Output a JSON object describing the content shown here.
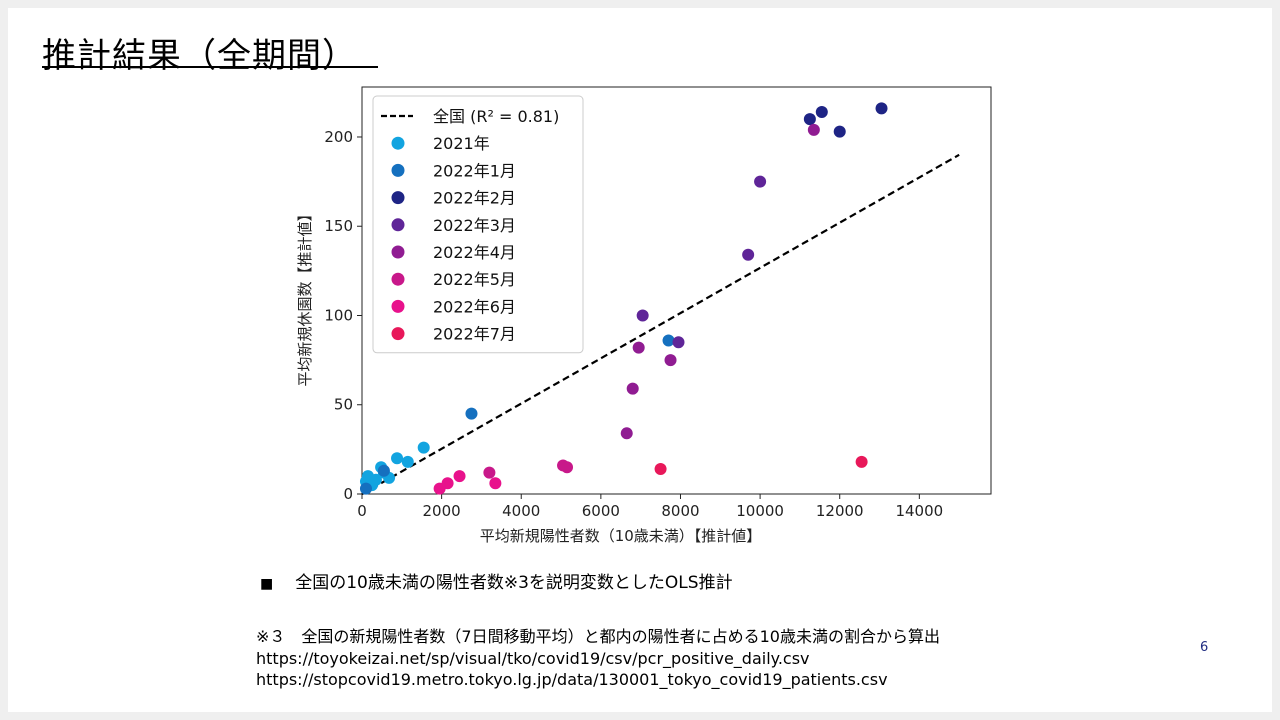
{
  "slide": {
    "title": "推計結果（全期間）",
    "bullet": "全国の10歳未満の陽性者数※3を説明変数としたOLS推計",
    "notes": [
      "※３　全国の新規陽性者数（7日間移動平均）と都内の陽性者に占める10歳未満の割合から算出",
      "https://toyokeizai.net/sp/visual/tko/covid19/csv/pcr_positive_daily.csv",
      "https://stopcovid19.metro.tokyo.lg.jp/data/130001_tokyo_covid19_patients.csv"
    ],
    "page_number": "6",
    "bullet_mark": "■"
  },
  "chart_data": {
    "type": "scatter",
    "xlabel": "平均新規陽性者数（10歳未満）【推計値】",
    "ylabel": "平均新規休園数【推計値】",
    "xlim": [
      0,
      15800
    ],
    "ylim": [
      0,
      228
    ],
    "x_ticks": [
      0,
      2000,
      4000,
      6000,
      8000,
      10000,
      12000,
      14000
    ],
    "y_ticks": [
      0,
      50,
      100,
      150,
      200
    ],
    "grid": false,
    "legend_position": "top-left",
    "fit_line": {
      "label": "全国 (R² = 0.81)",
      "x": [
        0,
        15000
      ],
      "y": [
        0,
        190
      ],
      "color": "#000000",
      "style": "dashed"
    },
    "series": [
      {
        "name": "2021年",
        "color": "#12a4e0",
        "points": [
          [
            100,
            7
          ],
          [
            150,
            10
          ],
          [
            250,
            5
          ],
          [
            350,
            8
          ],
          [
            480,
            15
          ],
          [
            550,
            12
          ],
          [
            680,
            9
          ],
          [
            880,
            20
          ],
          [
            1150,
            18
          ],
          [
            1550,
            26
          ]
        ]
      },
      {
        "name": "2022年1月",
        "color": "#1570bf",
        "points": [
          [
            100,
            3
          ],
          [
            550,
            13
          ],
          [
            2750,
            45
          ],
          [
            7700,
            86
          ]
        ]
      },
      {
        "name": "2022年2月",
        "color": "#1e2485",
        "points": [
          [
            11250,
            210
          ],
          [
            11550,
            214
          ],
          [
            12000,
            203
          ],
          [
            13050,
            216
          ]
        ]
      },
      {
        "name": "2022年3月",
        "color": "#5f2598",
        "points": [
          [
            7050,
            100
          ],
          [
            7950,
            85
          ],
          [
            9700,
            134
          ],
          [
            10000,
            175
          ]
        ]
      },
      {
        "name": "2022年4月",
        "color": "#901c92",
        "points": [
          [
            6650,
            34
          ],
          [
            6800,
            59
          ],
          [
            6950,
            82
          ],
          [
            7750,
            75
          ],
          [
            11350,
            204
          ]
        ]
      },
      {
        "name": "2022年5月",
        "color": "#c8188a",
        "points": [
          [
            3200,
            12
          ],
          [
            5050,
            16
          ],
          [
            5150,
            15
          ]
        ]
      },
      {
        "name": "2022年6月",
        "color": "#e8128c",
        "points": [
          [
            1950,
            3
          ],
          [
            2150,
            6
          ],
          [
            2450,
            10
          ],
          [
            3350,
            6
          ]
        ]
      },
      {
        "name": "2022年7月",
        "color": "#e8185a",
        "points": [
          [
            7500,
            14
          ],
          [
            12550,
            18
          ]
        ]
      }
    ]
  }
}
